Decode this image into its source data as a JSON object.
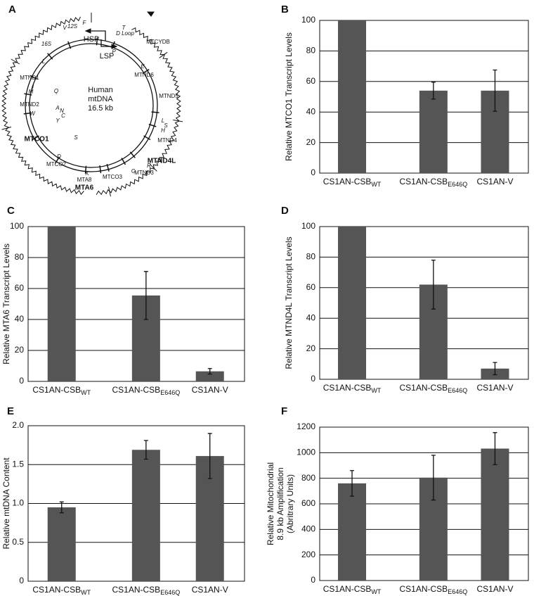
{
  "diagram": {
    "panel": "A",
    "center_text": [
      "Human",
      "mtDNA",
      "16.5 kb"
    ],
    "labels": [
      "HSP",
      "LSP",
      "12S",
      "V",
      "F",
      "D Loop",
      "T",
      "P",
      "MTCYDB",
      "E",
      "MTND6",
      "MTND5",
      "L",
      "S",
      "H",
      "MTND4",
      "MTND4L",
      "R",
      "MTND3",
      "G",
      "MTCO3",
      "MTA8",
      "MTA6",
      "K",
      "MTCO2",
      "D",
      "S",
      "MTCO1",
      "W",
      "A",
      "N",
      "C",
      "Y",
      "MTND2",
      "I",
      "M",
      "Q",
      "MTND1",
      "L",
      "16S"
    ]
  },
  "chart_data": [
    {
      "type": "bar",
      "panel": "B",
      "y_label": "Relative MTCO1 Transcript Levels",
      "categories": [
        "CS1AN-CSB",
        "CS1AN-CSB",
        "CS1AN-V"
      ],
      "category_subscripts": [
        "WT",
        "E646Q",
        null
      ],
      "values": [
        100,
        54,
        54
      ],
      "errors": [
        null,
        5.5,
        13.5
      ],
      "color": "#555555",
      "ylim": [
        0,
        100
      ],
      "yticks": [
        0,
        20,
        40,
        60,
        80,
        100
      ],
      "grid": true
    },
    {
      "type": "bar",
      "panel": "C",
      "y_label": "Relative MTA6 Transcript Levels",
      "categories": [
        "CS1AN-CSB",
        "CS1AN-CSB",
        "CS1AN-V"
      ],
      "category_subscripts": [
        "WT",
        "E646Q",
        null
      ],
      "values": [
        100,
        55.5,
        6.5
      ],
      "errors": [
        null,
        15.5,
        1.8
      ],
      "color": "#555555",
      "ylim": [
        0,
        100
      ],
      "yticks": [
        0,
        20,
        40,
        60,
        80,
        100
      ],
      "grid": true
    },
    {
      "type": "bar",
      "panel": "D",
      "y_label": "Relative MTND4L Transcript Levels",
      "categories": [
        "CS1AN-CSB",
        "CS1AN-CSB",
        "CS1AN-V"
      ],
      "category_subscripts": [
        "WT",
        "E646Q",
        null
      ],
      "values": [
        100,
        62,
        7
      ],
      "errors": [
        null,
        16,
        4
      ],
      "color": "#555555",
      "ylim": [
        0,
        100
      ],
      "yticks": [
        0,
        20,
        40,
        60,
        80,
        100
      ],
      "grid": true
    },
    {
      "type": "bar",
      "panel": "E",
      "y_label": "Relative mtDNA Content",
      "categories": [
        "CS1AN-CSB",
        "CS1AN-CSB",
        "CS1AN-V"
      ],
      "category_subscripts": [
        "WT",
        "E646Q",
        null
      ],
      "values": [
        0.95,
        1.69,
        1.61
      ],
      "errors": [
        0.07,
        0.12,
        0.29
      ],
      "color": "#555555",
      "ylim": [
        0,
        2
      ],
      "yticks": [
        0,
        0.5,
        {
          "value": 1,
          "label": "1.0"
        },
        1.5,
        {
          "value": 2,
          "label": "2.0"
        }
      ],
      "grid": true
    },
    {
      "type": "bar",
      "panel": "F",
      "y_label": [
        "Relative Mitochondrial",
        "8.9 kb Amplification",
        "(Abritrary Units)"
      ],
      "categories": [
        "CS1AN-CSB",
        "CS1AN-CSB",
        "CS1AN-V"
      ],
      "category_subscripts": [
        "WT",
        "E646Q",
        null
      ],
      "values": [
        760,
        805,
        1032
      ],
      "errors": [
        100,
        175,
        125
      ],
      "color": "#555555",
      "ylim": [
        0,
        1200
      ],
      "yticks": [
        0,
        200,
        400,
        600,
        800,
        1000,
        1200
      ],
      "grid": true
    }
  ]
}
